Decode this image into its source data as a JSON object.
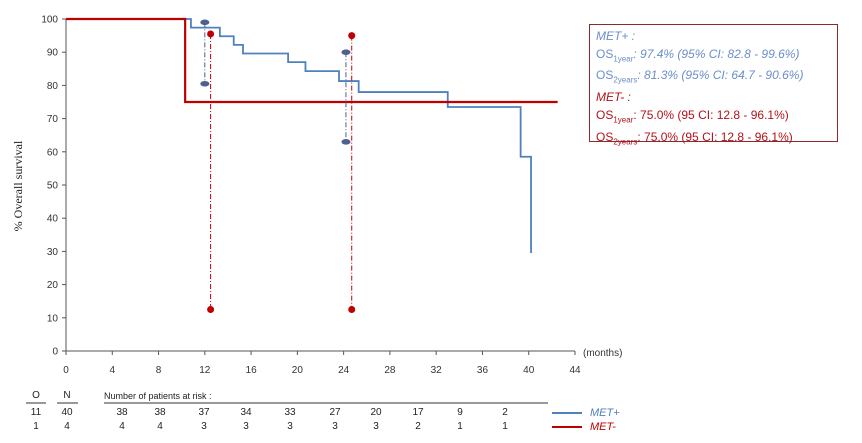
{
  "chart_data": {
    "type": "line",
    "title": "",
    "xlabel": "(months)",
    "ylabel": "% Overall survival",
    "xlim": [
      0,
      44
    ],
    "ylim": [
      0,
      100
    ],
    "xticks": [
      "0",
      "4",
      "8",
      "12",
      "16",
      "20",
      "24",
      "28",
      "32",
      "36",
      "40",
      "44"
    ],
    "yticks": [
      "0",
      "10",
      "20",
      "30",
      "40",
      "50",
      "60",
      "70",
      "80",
      "90",
      "100"
    ],
    "grid": false,
    "series": [
      {
        "name": "MET+",
        "color": "#4f81bd",
        "step": true,
        "x": [
          0,
          10.8,
          12.2,
          13.3,
          14.5,
          15.3,
          19.2,
          20.7,
          23.6,
          25.3,
          33.0,
          39.3,
          40.0,
          40.2
        ],
        "y": [
          100,
          97.4,
          97.4,
          94.8,
          92.2,
          89.6,
          87.0,
          84.3,
          81.3,
          78.0,
          73.5,
          58.5,
          58.5,
          29.5
        ]
      },
      {
        "name": "MET-",
        "color": "#c00000",
        "step": true,
        "x": [
          0,
          10.3,
          42.5
        ],
        "y": [
          100,
          75.0,
          75.0
        ]
      }
    ],
    "markers": {
      "met_plus_ci_1year": {
        "x": 12.0,
        "upper": 99.0,
        "lower": 80.5,
        "color": "#4f5f8f"
      },
      "met_plus_ci_2years": {
        "x": 24.2,
        "upper": 90.0,
        "lower": 63.0,
        "color": "#4f5f8f"
      },
      "met_minus_ci_1year": {
        "x": 12.5,
        "upper": 95.5,
        "lower": 12.5,
        "color": "#c00000"
      },
      "met_minus_ci_2years": {
        "x": 24.7,
        "upper": 95.0,
        "lower": 12.5,
        "color": "#c00000"
      }
    },
    "legend_position": "top-right",
    "legend": {
      "met_plus_title": "MET+ :",
      "met_plus_os1_label": "OS",
      "met_plus_os1_sub": "1year",
      "met_plus_os1_value": ": 97.4% (95% CI: 82.8  -  99.6%)",
      "met_plus_os2_label": "OS",
      "met_plus_os2_sub": "2years",
      "met_plus_os2_value": ": 81.3% (95% CI: 64.7  -  90.6%)",
      "met_minus_title": "MET- :",
      "met_minus_os1_label": "OS",
      "met_minus_os1_sub": "1year",
      "met_minus_os1_value": ": 75.0% (95 CI: 12.8  -  96.1%)",
      "met_minus_os2_label": "OS",
      "met_minus_os2_sub": "2years",
      "met_minus_os2_value": ": 75.0% (95 CI: 12.8  -  96.1%)"
    },
    "risk_table": {
      "col_o": "O",
      "col_n": "N",
      "header": "Number of patients at risk :",
      "met_plus": {
        "o": "11",
        "n": "40",
        "values": [
          "38",
          "38",
          "37",
          "34",
          "33",
          "27",
          "20",
          "17",
          "9",
          "2"
        ],
        "label": "MET+"
      },
      "met_minus": {
        "o": "1",
        "n": "4",
        "values": [
          "4",
          "4",
          "3",
          "3",
          "3",
          "3",
          "3",
          "2",
          "1",
          "1"
        ],
        "label": "MET-"
      }
    }
  }
}
